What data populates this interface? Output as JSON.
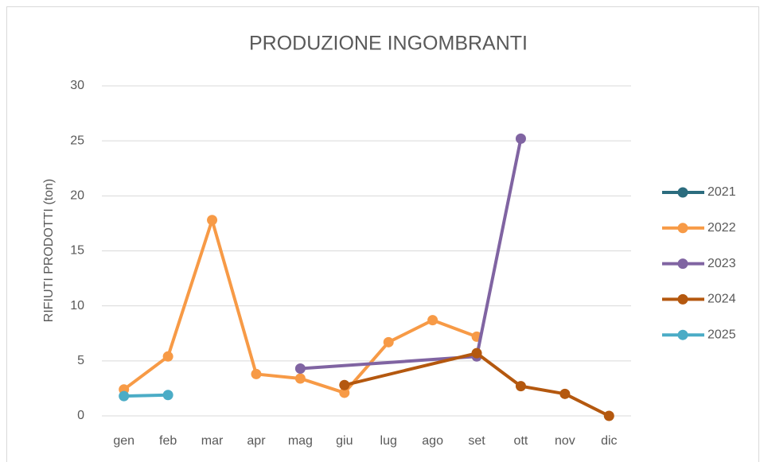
{
  "chart_data": {
    "type": "line",
    "title": "PRODUZIONE INGOMBRANTI",
    "y_label": "RIFIUTI PRODOTTI (ton)",
    "categories": [
      "gen",
      "feb",
      "mar",
      "apr",
      "mag",
      "giu",
      "lug",
      "ago",
      "set",
      "ott",
      "nov",
      "dic"
    ],
    "series": [
      {
        "name": "2021",
        "color": "#2b6c7e",
        "values": [
          null,
          null,
          null,
          null,
          null,
          null,
          null,
          null,
          null,
          null,
          null,
          null
        ]
      },
      {
        "name": "2022",
        "color": "#f79a46",
        "values": [
          2.4,
          5.4,
          17.8,
          3.8,
          3.4,
          2.1,
          6.7,
          8.7,
          7.2,
          null,
          null,
          null
        ]
      },
      {
        "name": "2023",
        "color": "#8064a2",
        "values": [
          null,
          null,
          null,
          null,
          4.3,
          null,
          null,
          null,
          5.4,
          25.2,
          null,
          null
        ]
      },
      {
        "name": "2024",
        "color": "#b4580f",
        "values": [
          null,
          null,
          null,
          null,
          null,
          2.8,
          null,
          null,
          5.7,
          2.7,
          2.0,
          0
        ]
      },
      {
        "name": "2025",
        "color": "#4bacc6",
        "values": [
          1.8,
          1.9,
          null,
          null,
          null,
          null,
          null,
          null,
          null,
          null,
          null,
          null
        ]
      }
    ],
    "ylim": [
      0,
      30
    ],
    "yticks": [
      0,
      5,
      10,
      15,
      20,
      25,
      30
    ],
    "grid": true,
    "span_gaps": true,
    "legend": "right"
  }
}
